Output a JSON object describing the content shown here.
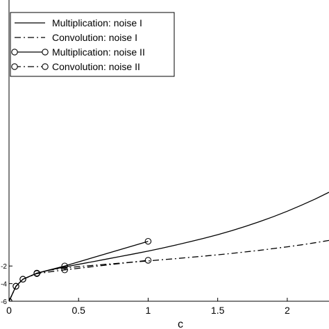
{
  "chart_data": {
    "type": "line",
    "title": "",
    "xlabel": "c",
    "ylabel": "",
    "xlim": [
      0,
      2.3
    ],
    "ylim": [
      -2.6,
      0.82
    ],
    "x_ticks": [
      0,
      0.5,
      1,
      1.5,
      2
    ],
    "x_tick_labels": [
      "0",
      "0.5",
      "1",
      "1.5",
      "2"
    ],
    "y_ticks": [
      -2.6,
      -2.4,
      -2.2
    ],
    "y_tick_labels": [
      "-6",
      "-4",
      "-2"
    ],
    "grid": false,
    "legend": {
      "position": "top-left"
    },
    "series": [
      {
        "name": "Multiplication: noise I",
        "style": "solid",
        "marker": "none",
        "color": "#000000",
        "x": [
          0,
          0.05,
          0.1,
          0.2,
          0.3,
          0.4,
          0.5,
          0.6,
          0.7,
          0.8,
          0.9,
          1.0,
          1.1,
          1.2,
          1.3,
          1.4,
          1.5,
          1.6,
          1.7,
          1.8,
          1.9,
          2.0,
          2.1,
          2.2,
          2.3
        ],
        "y": [
          -2.6,
          -2.43,
          -2.35,
          -2.283,
          -2.243,
          -2.211,
          -2.181,
          -2.152,
          -2.122,
          -2.092,
          -2.062,
          -2.03,
          -1.997,
          -1.962,
          -1.925,
          -1.886,
          -1.844,
          -1.799,
          -1.75,
          -1.697,
          -1.64,
          -1.578,
          -1.511,
          -1.44,
          -1.363
        ]
      },
      {
        "name": "Convolution: noise I",
        "style": "dashdot",
        "marker": "none",
        "color": "#000000",
        "x": [
          0,
          0.05,
          0.1,
          0.2,
          0.3,
          0.4,
          0.5,
          0.6,
          0.7,
          0.8,
          0.9,
          1.0,
          1.1,
          1.2,
          1.3,
          1.4,
          1.5,
          1.6,
          1.7,
          1.8,
          1.9,
          2.0,
          2.1,
          2.2,
          2.3
        ],
        "y": [
          -2.6,
          -2.43,
          -2.35,
          -2.283,
          -2.245,
          -2.222,
          -2.207,
          -2.193,
          -2.18,
          -2.167,
          -2.155,
          -2.142,
          -2.129,
          -2.116,
          -2.102,
          -2.088,
          -2.073,
          -2.057,
          -2.04,
          -2.022,
          -2.002,
          -1.982,
          -1.96,
          -1.936,
          -1.91
        ]
      },
      {
        "name": "Multiplication: noise II",
        "style": "solid",
        "marker": "circle",
        "color": "#000000",
        "x": [
          0,
          0.05,
          0.1,
          0.2,
          0.4,
          1.0
        ],
        "y": [
          -2.6,
          -2.43,
          -2.35,
          -2.281,
          -2.2,
          -1.92
        ]
      },
      {
        "name": "Convolution: noise II",
        "style": "dashdot",
        "marker": "circle",
        "color": "#000000",
        "x": [
          0,
          0.05,
          0.1,
          0.2,
          0.4,
          1.0
        ],
        "y": [
          -2.6,
          -2.43,
          -2.35,
          -2.286,
          -2.244,
          -2.135
        ]
      }
    ]
  }
}
